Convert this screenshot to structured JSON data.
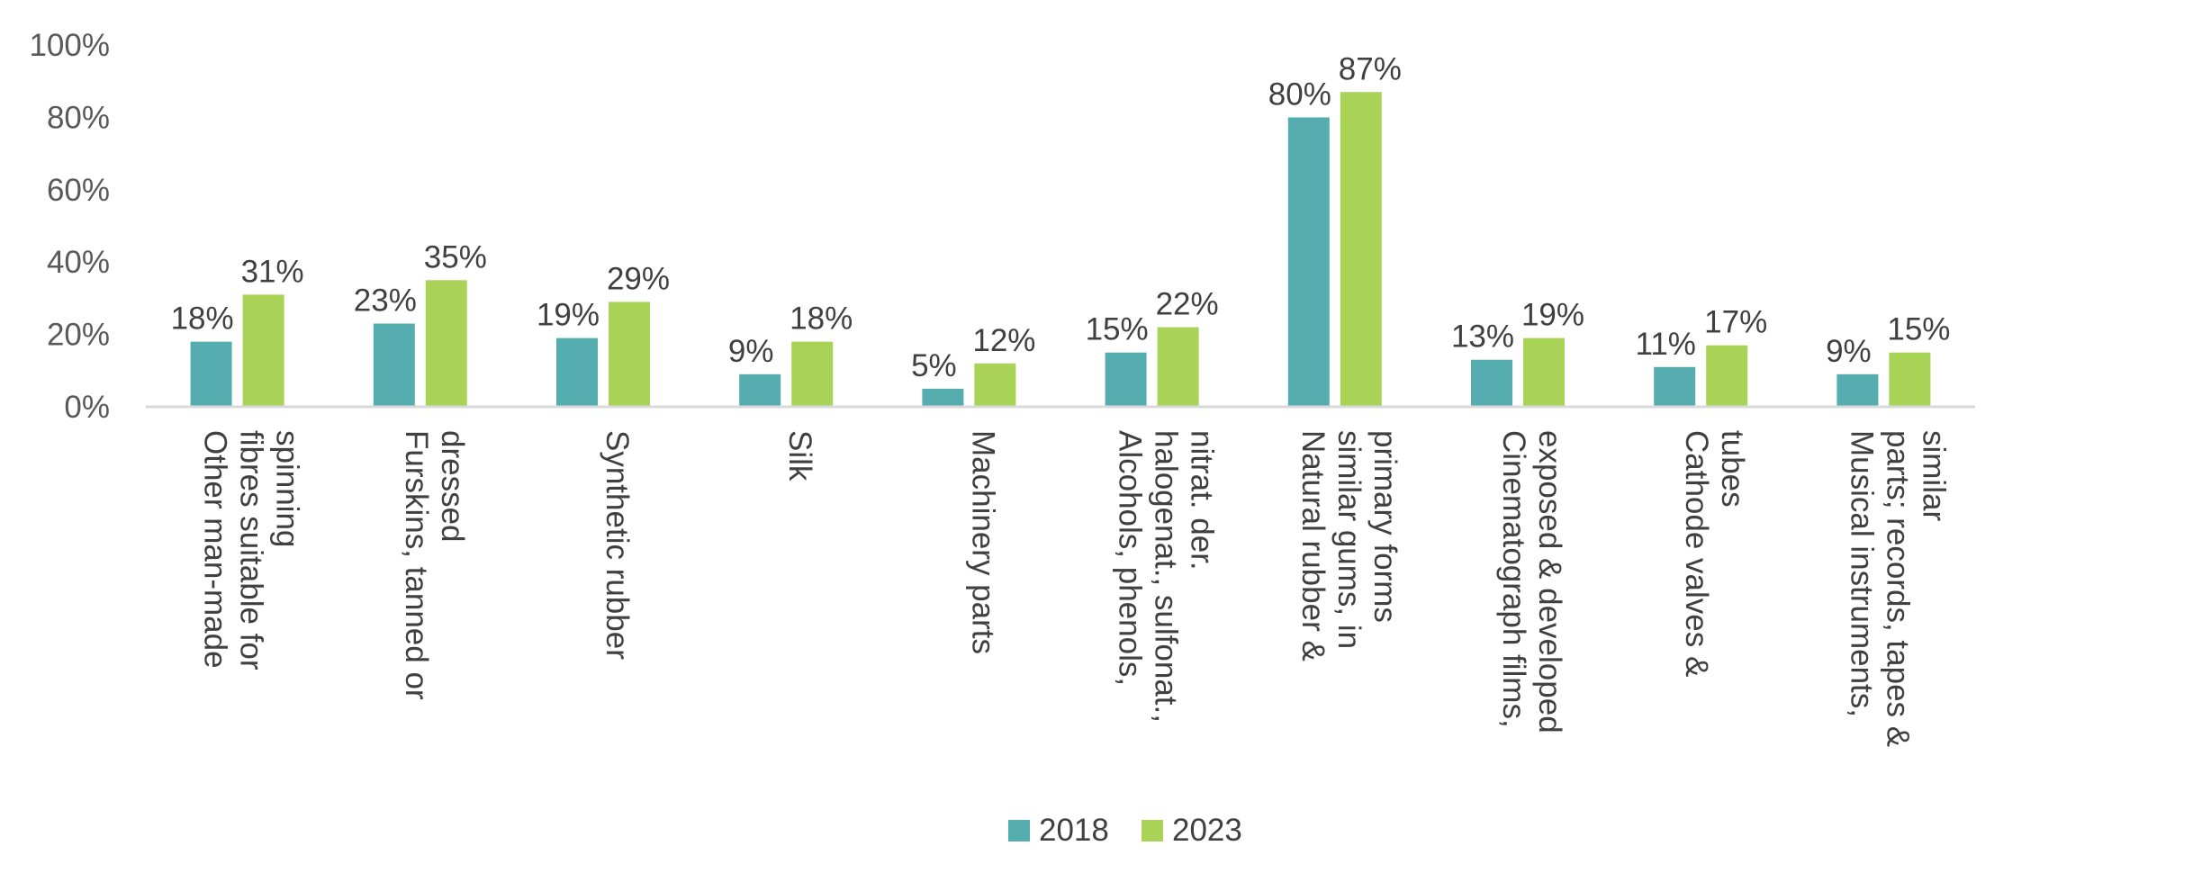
{
  "chart_data": {
    "type": "bar",
    "categories": [
      [
        "Other man-made",
        "fibres suitable for",
        "spinning"
      ],
      [
        "Furskins, tanned or",
        "dressed"
      ],
      [
        "Synthetic rubber"
      ],
      [
        "Silk"
      ],
      [
        "Machinery parts"
      ],
      [
        "Alcohols, phenols,",
        "halogenat., sulfonat.,",
        "nitrat. der."
      ],
      [
        "Natural rubber &",
        "similar gums, in",
        "primary forms"
      ],
      [
        "Cinematograph films,",
        "exposed & developed"
      ],
      [
        "Cathode valves &",
        "tubes"
      ],
      [
        "Musical instruments,",
        "parts; records, tapes &",
        "similar"
      ]
    ],
    "series": [
      {
        "name": "2018",
        "color": "#56ADB0",
        "values": [
          18,
          23,
          19,
          9,
          5,
          15,
          80,
          13,
          11,
          9
        ],
        "labels": [
          "18%",
          "23%",
          "19%",
          "9%",
          "5%",
          "15%",
          "80%",
          "13%",
          "11%",
          "9%"
        ]
      },
      {
        "name": "2023",
        "color": "#A9D356",
        "values": [
          31,
          35,
          29,
          18,
          12,
          22,
          87,
          19,
          17,
          15
        ],
        "labels": [
          "31%",
          "35%",
          "29%",
          "18%",
          "12%",
          "22%",
          "87%",
          "19%",
          "17%",
          "15%"
        ]
      }
    ],
    "y_ticks": [
      "0%",
      "20%",
      "40%",
      "60%",
      "80%",
      "100%"
    ],
    "ylim": [
      0,
      100
    ],
    "grid": false,
    "legend_position": "bottom",
    "axis_color": "#D9D9D9"
  }
}
